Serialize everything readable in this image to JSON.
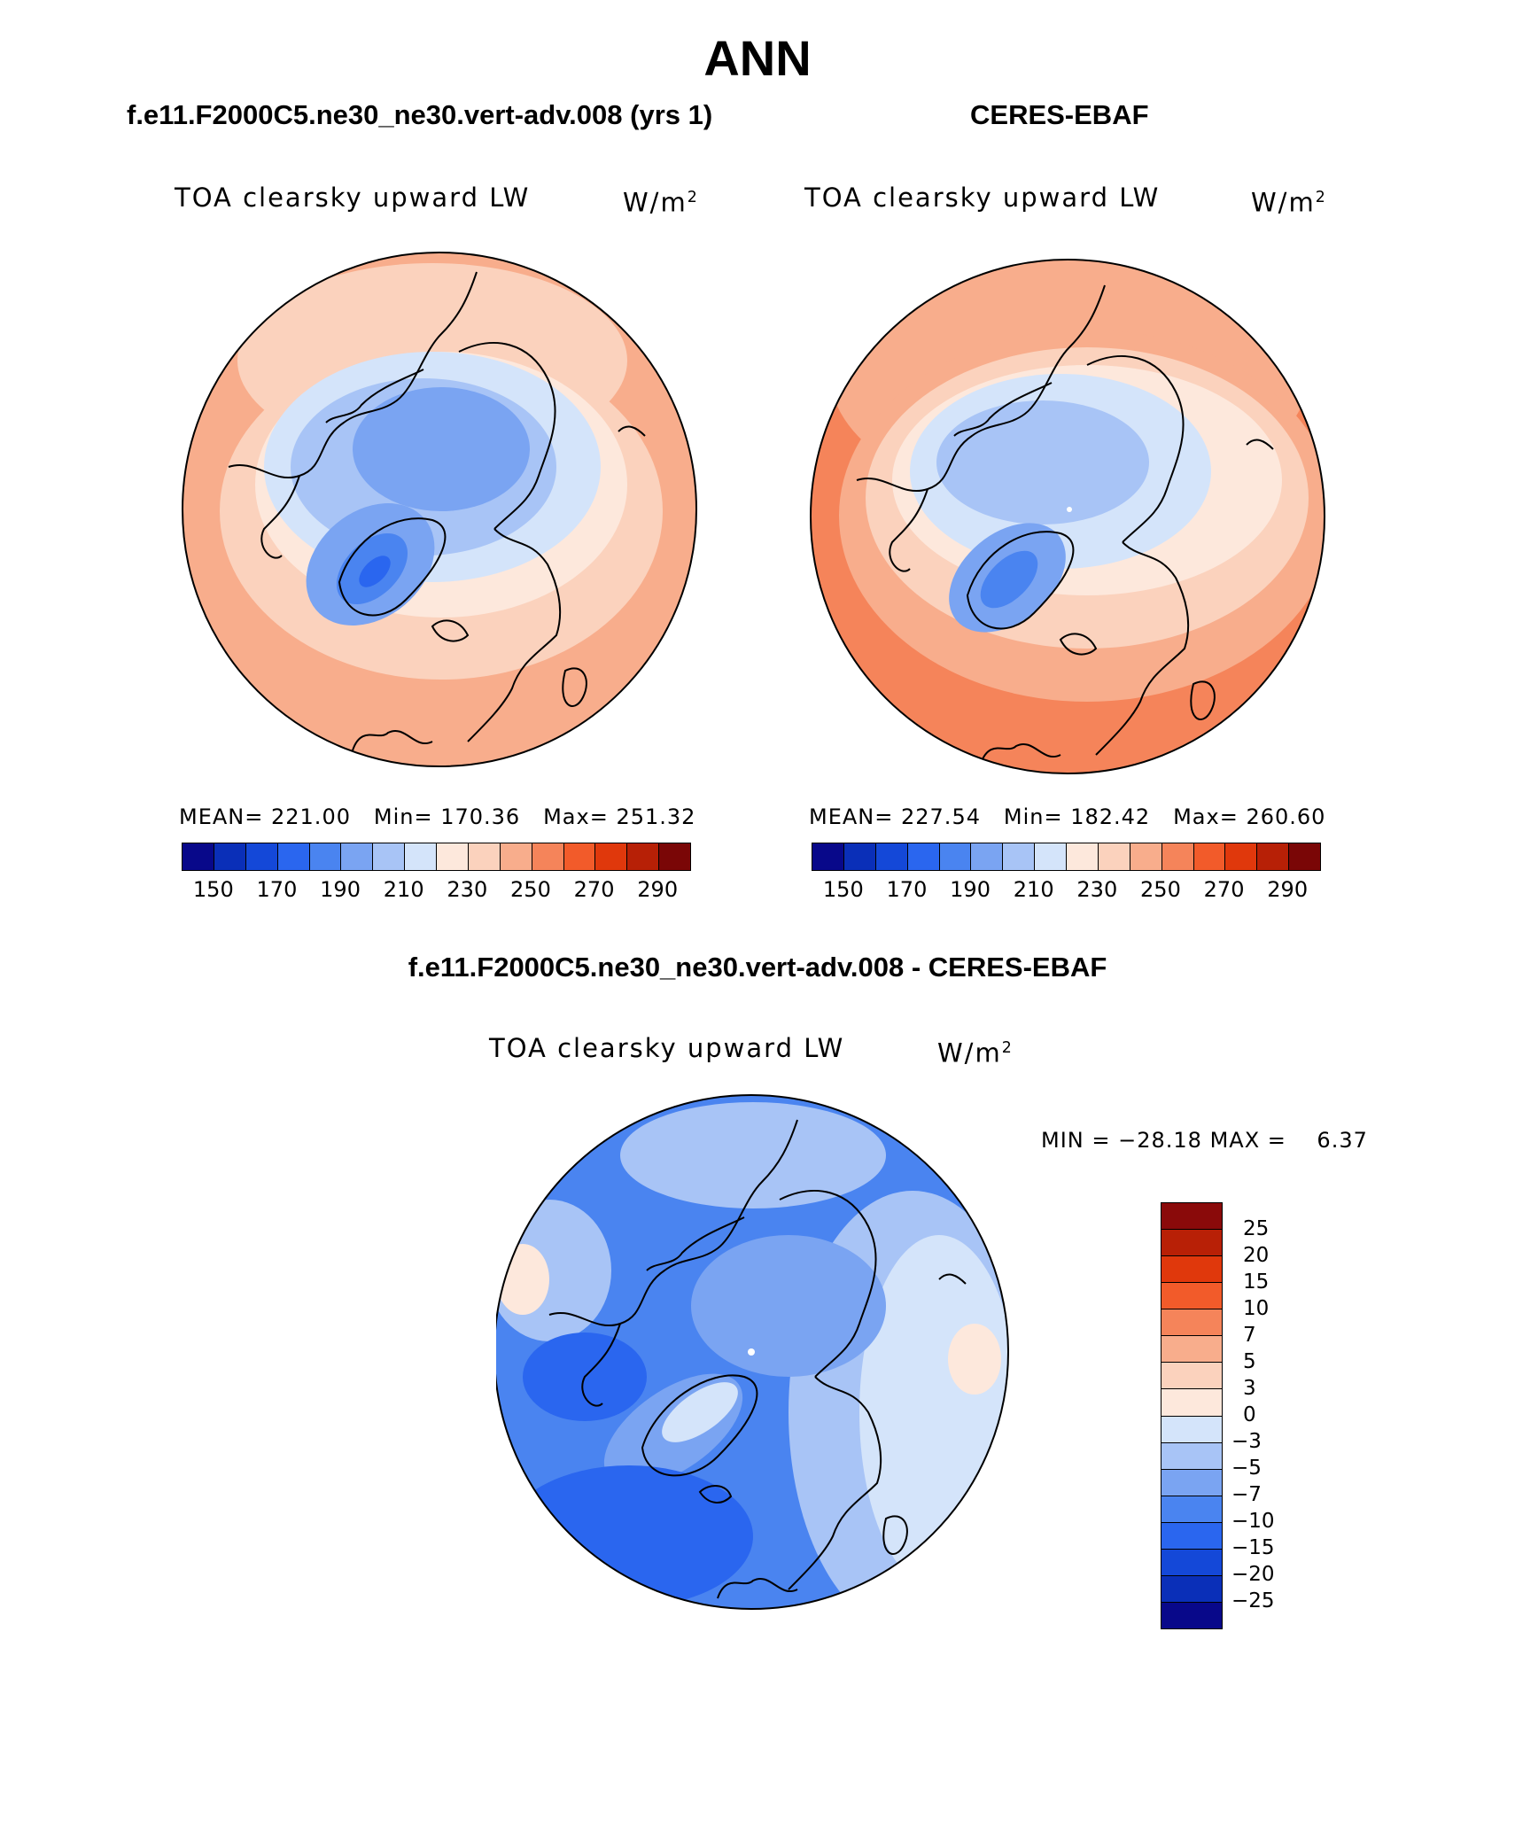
{
  "title": "ANN",
  "panels": {
    "model": {
      "heading": "f.e11.F2000C5.ne30_ne30.vert-adv.008 (yrs 1)",
      "variable": "TOA clearsky upward LW",
      "units": "W/m",
      "units_sup": "2",
      "stats": {
        "mean_label": "MEAN=",
        "mean": "221.00",
        "min_label": "Min=",
        "min": "170.36",
        "max_label": "Max=",
        "max": "251.32"
      }
    },
    "obs": {
      "heading": "CERES-EBAF",
      "variable": "TOA clearsky upward LW",
      "units": "W/m",
      "units_sup": "2",
      "stats": {
        "mean_label": "MEAN=",
        "mean": "227.54",
        "min_label": "Min=",
        "min": "182.42",
        "max_label": "Max=",
        "max": "260.60"
      }
    },
    "diff": {
      "heading": "f.e11.F2000C5.ne30_ne30.vert-adv.008 - CERES-EBAF",
      "variable": "TOA clearsky upward LW",
      "units": "W/m",
      "units_sup": "2",
      "stats": {
        "min_label": "MIN =",
        "min": "−28.18",
        "max_label": "MAX =",
        "max": "6.37"
      }
    }
  },
  "colorbar_abs": {
    "colors": [
      "#08088a",
      "#0a2fb8",
      "#1448d8",
      "#2a66ef",
      "#4a84f0",
      "#7aa4f2",
      "#a8c4f6",
      "#d4e4fa",
      "#fde8dc",
      "#fbd2bd",
      "#f8ad8c",
      "#f5845a",
      "#f25b2a",
      "#e0380c",
      "#b72006",
      "#7a0606"
    ],
    "labels": [
      "150",
      "170",
      "190",
      "210",
      "230",
      "250",
      "270",
      "290"
    ]
  },
  "colorbar_diff": {
    "colors": [
      "#8a0a0a",
      "#b82006",
      "#e0380c",
      "#f25b2a",
      "#f5845a",
      "#f8ad8c",
      "#fbd2bd",
      "#fde8dc",
      "#d4e4fa",
      "#a8c4f6",
      "#7aa4f2",
      "#4a84f0",
      "#2a66ef",
      "#1448d8",
      "#0a2fb8",
      "#08088a"
    ],
    "labels": [
      "25",
      "20",
      "15",
      "10",
      "7",
      "5",
      "3",
      "0",
      "−3",
      "−5",
      "−7",
      "−10",
      "−15",
      "−20",
      "−25"
    ]
  },
  "palette": {
    "coast": "#000000",
    "ice_blue": "#7aa4f2",
    "warm": "#f8ad8c"
  }
}
